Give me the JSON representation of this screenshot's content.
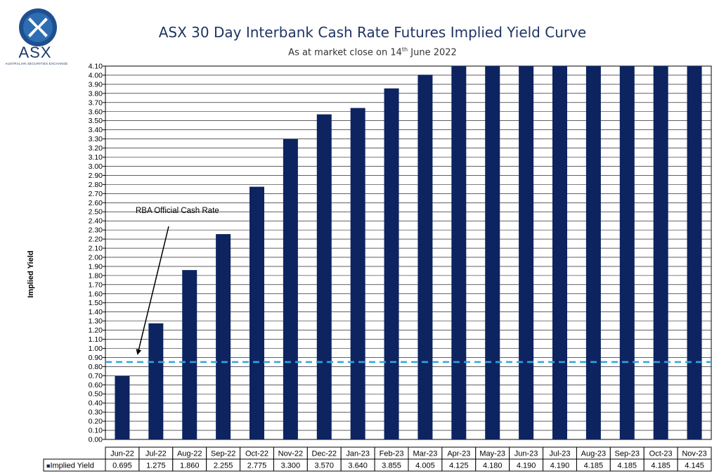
{
  "header": {
    "logo_text": "ASX",
    "logo_subtext": "AUSTRALIAN SECURITIES EXCHANGE",
    "title": "ASX 30 Day Interbank Cash Rate Futures Implied Yield Curve",
    "subtitle_pre": "As at market close on 14",
    "subtitle_sup": "th",
    "subtitle_post": " June 2022"
  },
  "chart_data": {
    "type": "bar",
    "title": "ASX 30 Day Interbank Cash Rate Futures Implied Yield Curve",
    "ylabel": "Implied Yield",
    "ylim": [
      0,
      4.1
    ],
    "ytick_step": 0.1,
    "categories": [
      "Jun-22",
      "Jul-22",
      "Aug-22",
      "Sep-22",
      "Oct-22",
      "Nov-22",
      "Dec-22",
      "Jan-23",
      "Feb-23",
      "Mar-23",
      "Apr-23",
      "May-23",
      "Jun-23",
      "Jul-23",
      "Aug-23",
      "Sep-23",
      "Oct-23",
      "Nov-23"
    ],
    "series": [
      {
        "name": "Implied Yield",
        "values": [
          0.695,
          1.275,
          1.86,
          2.255,
          2.775,
          3.3,
          3.57,
          3.64,
          3.855,
          4.005,
          4.125,
          4.18,
          4.19,
          4.19,
          4.185,
          4.185,
          4.185,
          4.145
        ],
        "display_values": [
          "0.695",
          "1.275",
          "1.860",
          "2.255",
          "2.775",
          "3.300",
          "3.570",
          "3.640",
          "3.855",
          "4.005",
          "4.125",
          "4.180",
          "4.190",
          "4.190",
          "4.185",
          "4.185",
          "4.185",
          "4.145"
        ],
        "color": "#0d2461"
      }
    ],
    "reference_line": {
      "label": "RBA Official Cash Rate",
      "value": 0.85,
      "color": "#2fa7e0",
      "style": "dashed"
    },
    "legend_marker": "■",
    "grid": true
  }
}
